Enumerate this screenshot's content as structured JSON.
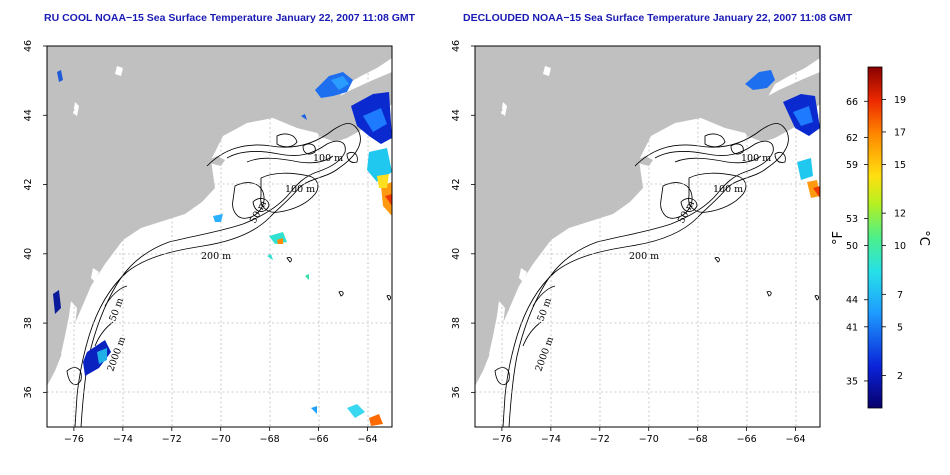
{
  "maps": [
    {
      "title": "RU COOL NOAA−15 Sea Surface Temperature January 22, 2007 11:08 GMT",
      "contour_labels": [
        "100 m",
        "100 m",
        "50 m",
        "200 m",
        "50 m",
        "2000 m"
      ]
    },
    {
      "title": "DECLOUDED NOAA−15 Sea Surface Temperature January 22, 2007 11:08 GMT",
      "contour_labels": [
        "100 m",
        "100 m",
        "50 m",
        "200 m",
        "50 m",
        "2000 m"
      ]
    }
  ],
  "axes": {
    "lon_ticks": [
      "−76",
      "−74",
      "−72",
      "−70",
      "−68",
      "−66",
      "−64"
    ],
    "lat_ticks": [
      "46",
      "44",
      "42",
      "40",
      "38",
      "36"
    ],
    "lon_range": [
      -77.1,
      -63.0
    ],
    "lat_range": [
      35.0,
      46.0
    ]
  },
  "colorbar": {
    "fahrenheit_ticks": [
      "66",
      "62",
      "59",
      "53",
      "50",
      "44",
      "41",
      "35"
    ],
    "celsius_ticks": [
      "19",
      "17",
      "15",
      "12",
      "10",
      "7",
      "5",
      "2"
    ],
    "fahrenheit_label": "°F",
    "celsius_label": "°C",
    "range_c": [
      0,
      21
    ]
  },
  "colors": {
    "land": "#c0c0c0",
    "water": "#ffffff",
    "grid": "#bdbdbd",
    "title": "#1a1ab4"
  }
}
